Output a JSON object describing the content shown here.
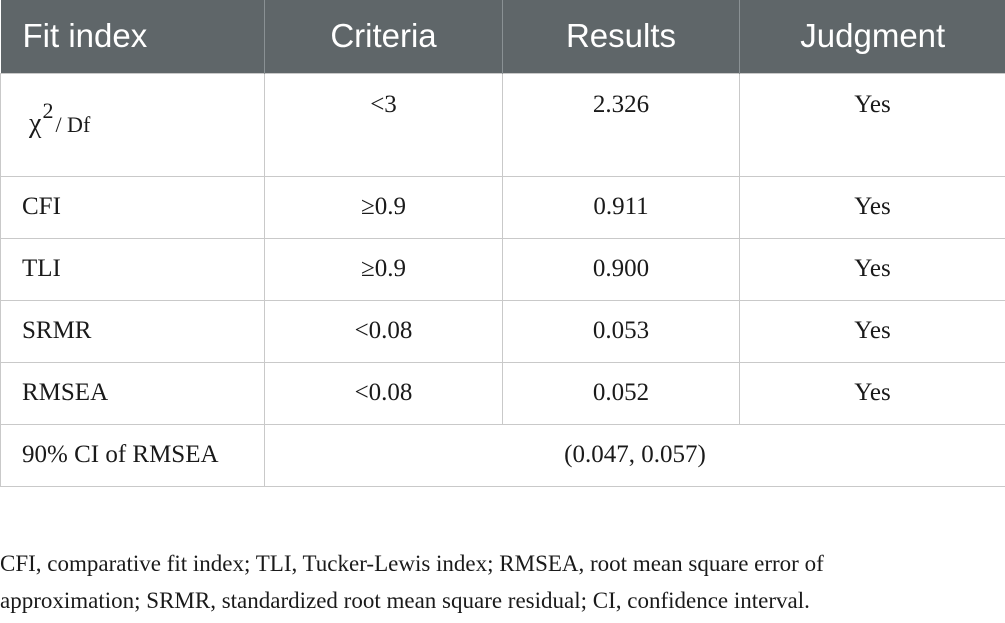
{
  "table": {
    "headers": [
      "Fit index",
      "Criteria",
      "Results",
      "Judgment"
    ],
    "chi_row": {
      "index_symbol": "χ",
      "index_superscript": "2",
      "index_rest": "/ Df",
      "criteria": "<3",
      "result": "2.326",
      "judgment": "Yes"
    },
    "rows": [
      {
        "index": "CFI",
        "criteria": "≥0.9",
        "result": "0.911",
        "judgment": "Yes"
      },
      {
        "index": "TLI",
        "criteria": "≥0.9",
        "result": "0.900",
        "judgment": "Yes"
      },
      {
        "index": "SRMR",
        "criteria": "<0.08",
        "result": "0.053",
        "judgment": "Yes"
      },
      {
        "index": "RMSEA",
        "criteria": "<0.08",
        "result": "0.052",
        "judgment": "Yes"
      }
    ],
    "ci_row": {
      "index": "90% CI of RMSEA",
      "value": "(0.047, 0.057)"
    },
    "header_color": "#5f6669"
  },
  "footnote": {
    "line1": "CFI, comparative fit index; TLI, Tucker-Lewis index; RMSEA, root mean square error of",
    "line2": "approximation; SRMR, standardized root mean square residual; CI, confidence interval."
  }
}
